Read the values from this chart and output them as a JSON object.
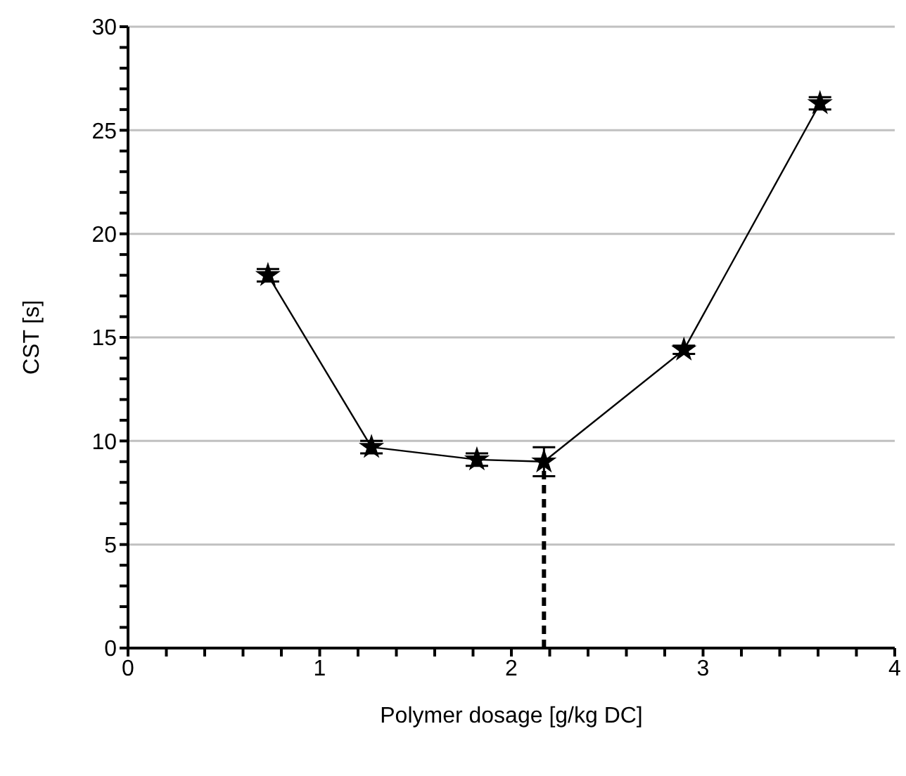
{
  "chart_data": {
    "type": "line",
    "xlabel": "Polymer dosage [g/kg DC]",
    "ylabel": "CST [s]",
    "x": [
      0.73,
      1.27,
      1.82,
      2.17,
      2.9,
      3.61
    ],
    "series": [
      {
        "color": "#000000",
        "values": [
          18.0,
          9.7,
          9.1,
          9.0,
          14.4,
          26.3
        ],
        "errors": [
          0.3,
          0.3,
          0.3,
          0.7,
          0.2,
          0.3
        ]
      }
    ],
    "xlim": [
      0,
      4
    ],
    "xticks": [
      0,
      {
        "value": 0.2,
        "label": null
      },
      {
        "value": 0.4,
        "label": null
      },
      {
        "value": 0.6,
        "label": null
      },
      {
        "value": 0.8,
        "label": null
      },
      1,
      {
        "value": 1.2,
        "label": null
      },
      {
        "value": 1.4,
        "label": null
      },
      {
        "value": 1.6,
        "label": null
      },
      {
        "value": 1.8,
        "label": null
      },
      2,
      {
        "value": 2.2,
        "label": null
      },
      {
        "value": 2.4,
        "label": null
      },
      {
        "value": 2.6,
        "label": null
      },
      {
        "value": 2.8,
        "label": null
      },
      3,
      {
        "value": 3.2,
        "label": null
      },
      {
        "value": 3.4,
        "label": null
      },
      {
        "value": 3.6,
        "label": null
      },
      {
        "value": 3.8,
        "label": null
      },
      4
    ],
    "ylim": [
      0,
      30
    ],
    "yticks": [
      0,
      {
        "value": 1,
        "label": null
      },
      {
        "value": 2,
        "label": null
      },
      {
        "value": 3,
        "label": null
      },
      {
        "value": 4,
        "label": null
      },
      5,
      {
        "value": 6,
        "label": null
      },
      {
        "value": 7,
        "label": null
      },
      {
        "value": 8,
        "label": null
      },
      {
        "value": 9,
        "label": null
      },
      10,
      {
        "value": 11,
        "label": null
      },
      {
        "value": 12,
        "label": null
      },
      {
        "value": 13,
        "label": null
      },
      {
        "value": 14,
        "label": null
      },
      15,
      {
        "value": 16,
        "label": null
      },
      {
        "value": 17,
        "label": null
      },
      {
        "value": 18,
        "label": null
      },
      {
        "value": 19,
        "label": null
      },
      20,
      {
        "value": 21,
        "label": null
      },
      {
        "value": 22,
        "label": null
      },
      {
        "value": 23,
        "label": null
      },
      {
        "value": 24,
        "label": null
      },
      25,
      {
        "value": 26,
        "label": null
      },
      {
        "value": 27,
        "label": null
      },
      {
        "value": 28,
        "label": null
      },
      {
        "value": 29,
        "label": null
      },
      30
    ],
    "grid": "y",
    "marker": "star",
    "line_style": "solid",
    "ref_lines": [
      {
        "axis": "x",
        "value": 2.17,
        "color": "#000000",
        "line_style": "dashed"
      }
    ]
  }
}
